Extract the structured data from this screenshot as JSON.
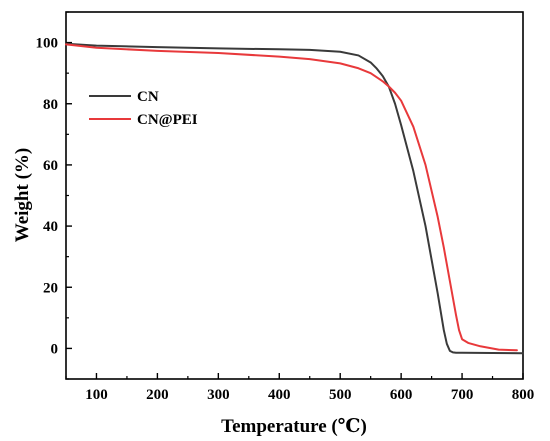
{
  "chart_data": {
    "type": "line",
    "xlabel": "Temperature (℃)",
    "ylabel": "Weight (%)",
    "xlim": [
      50,
      800
    ],
    "ylim": [
      -10,
      110
    ],
    "xticks": [
      100,
      200,
      300,
      400,
      500,
      600,
      700,
      800
    ],
    "yticks": [
      0,
      20,
      40,
      60,
      80,
      100
    ],
    "grid": false,
    "legend_position": "upper-left",
    "series": [
      {
        "name": "CN",
        "color": "#3a3a3a",
        "x": [
          50,
          100,
          200,
          300,
          400,
          450,
          500,
          530,
          550,
          560,
          570,
          580,
          590,
          600,
          620,
          640,
          660,
          670,
          675,
          680,
          685,
          690,
          700,
          750,
          800
        ],
        "y": [
          99.6,
          99.0,
          98.5,
          98.1,
          97.8,
          97.6,
          97.0,
          95.8,
          93.5,
          91.5,
          89.0,
          85.5,
          80.0,
          73.0,
          58.0,
          40.0,
          18.0,
          6.0,
          1.5,
          -0.8,
          -1.3,
          -1.4,
          -1.4,
          -1.5,
          -1.6
        ]
      },
      {
        "name": "CN@PEI",
        "color": "#e8393b",
        "x": [
          50,
          100,
          200,
          300,
          400,
          450,
          500,
          530,
          550,
          570,
          580,
          590,
          600,
          620,
          640,
          660,
          670,
          680,
          690,
          695,
          700,
          710,
          730,
          760,
          790
        ],
        "y": [
          99.4,
          98.3,
          97.3,
          96.6,
          95.4,
          94.6,
          93.2,
          91.6,
          90.0,
          87.3,
          85.6,
          83.6,
          81.0,
          72.5,
          60.0,
          43.0,
          33.0,
          22.0,
          11.0,
          6.0,
          3.0,
          1.8,
          0.7,
          -0.4,
          -0.6
        ]
      }
    ]
  }
}
